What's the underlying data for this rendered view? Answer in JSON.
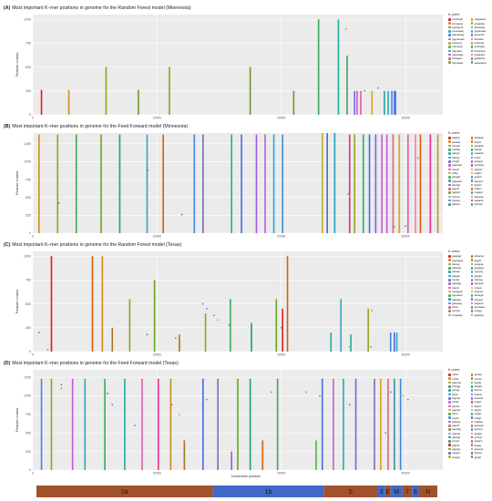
{
  "panels": [
    {
      "letter": "(A)",
      "title": "Most important K–mer positions in genome for the Random Forest model (Minnesota)",
      "ylabel": "Feature counts",
      "yticks": [
        0,
        250,
        500,
        750,
        1000
      ],
      "ylim": [
        0,
        1050
      ],
      "xticks": [
        "0",
        "10000",
        "20000",
        "30000"
      ],
      "legend_title": "K–mers",
      "legend": [
        "ccttcttgtc",
        "ctagaaaa",
        "ttccaacgt",
        "acaattac",
        "agcagcta",
        "ttttacaag",
        "ccacaaag",
        "gtgtacaac",
        "tgacaaatg",
        "agcacttc",
        "tggcacaac",
        "tttcaaat",
        "tcgtacgt",
        "tcattcaa",
        "ctacaagt",
        "gcttctgat",
        "tggcttaa",
        "tttcacaca",
        "cagtcaaa",
        "tctaaaca",
        "ttcaagat",
        "gaatttcta",
        "ctgcaaca",
        "aacaagca"
      ],
      "colors": [
        "#e41a1c",
        "#c8901a",
        "#e07a5f",
        "#9aa01a",
        "#6c9a2a",
        "#3aaa5a",
        "#1ab09a",
        "#2aa8c8",
        "#3a8ae0",
        "#7a6ae0",
        "#c25ae0",
        "#e05aa8",
        "#d9a020",
        "#a0b020",
        "#50b040",
        "#20b080",
        "#20a0c0",
        "#4070e0",
        "#8060e0",
        "#c060c0",
        "#e06080",
        "#b07030",
        "#70a050",
        "#3090b0"
      ],
      "chart_data": {
        "type": "bar",
        "x": [
          700,
          2900,
          5900,
          8500,
          11000,
          17500,
          21000,
          23000,
          24600,
          25300,
          25900,
          26100,
          26400,
          27300,
          28300,
          28600,
          28900,
          29100,
          29200
        ],
        "values": [
          260,
          260,
          500,
          260,
          500,
          500,
          250,
          1000,
          1000,
          620,
          250,
          250,
          250,
          250,
          250,
          250,
          250,
          250,
          250
        ],
        "series_index": [
          0,
          1,
          3,
          4,
          3,
          4,
          4,
          5,
          6,
          5,
          9,
          10,
          11,
          12,
          6,
          7,
          8,
          9,
          8
        ],
        "points": [
          [
            25200,
            900
          ],
          [
            26700,
            250
          ],
          [
            27800,
            280
          ]
        ]
      }
    },
    {
      "letter": "(B)",
      "title": "Most important K–mer positions in genome for the Feed Forward model (Minnesota)",
      "ylabel": "Feature counts",
      "yticks": [
        0,
        250,
        500,
        750,
        1000,
        1250
      ],
      "ylim": [
        0,
        1400
      ],
      "xticks": [
        "0",
        "10000",
        "20000",
        "30000"
      ],
      "legend_title": "K–mers",
      "legend": [
        "aagttg",
        "tatgaaa",
        "acaatg",
        "tttgca",
        "cacgat",
        "gtatgaa",
        "caatag",
        "cttcaa",
        "tgtcga",
        "caaatat",
        "ttaacg",
        "tccttc",
        "ccgtgt",
        "aacggt",
        "aaacaat",
        "tacaacg",
        "tcagtc",
        "gtgcac",
        "ttttttg",
        "cagttc",
        "gcgggt",
        "gcactt",
        "tgagcaa",
        "agcgcc",
        "aacagt",
        "ttgctct",
        "gtgcct",
        "ctattct",
        "tggtgct",
        "cagagt",
        "actcca",
        "aaacaa",
        "gctaca",
        "aaaaca",
        "tgttaat",
        "gtttcaa"
      ],
      "colors": [
        "#e41a1c",
        "#d95f02",
        "#c8901a",
        "#a6761d",
        "#9aa01a",
        "#66a61e",
        "#3aaa5a",
        "#1b9e77",
        "#1ab09a",
        "#2aa8c8",
        "#3a8ae0",
        "#4a6ae0",
        "#7570b3",
        "#9a5ae0",
        "#c25ae0",
        "#e7298a",
        "#e05aa8",
        "#f47ca0",
        "#d9a020",
        "#b8b020",
        "#50b040",
        "#20b080",
        "#20a0c0",
        "#4070e0",
        "#8060e0",
        "#c060c0",
        "#e06080",
        "#b07030",
        "#70a050",
        "#3090b0",
        "#a0a0a0",
        "#e08030",
        "#5080c0",
        "#c03030",
        "#30a070",
        "#9060b0"
      ],
      "chart_data": {
        "type": "bar",
        "x": [
          500,
          2000,
          3500,
          5500,
          7000,
          9200,
          10500,
          13000,
          13700,
          16000,
          16800,
          18000,
          18700,
          19400,
          20100,
          23300,
          23700,
          24300,
          25500,
          25900,
          26600,
          27100,
          27600,
          28100,
          28500,
          29000,
          29500,
          30200,
          30800,
          31200,
          32000,
          32600
        ],
        "values": [
          1380,
          1380,
          1380,
          1380,
          1380,
          1380,
          1380,
          1380,
          1380,
          1380,
          1380,
          1380,
          1380,
          1380,
          1380,
          1400,
          1400,
          1400,
          1380,
          1380,
          1380,
          1380,
          1380,
          1380,
          1380,
          1380,
          1380,
          1380,
          1380,
          1380,
          1380,
          1380
        ],
        "series_index": [
          2,
          4,
          6,
          5,
          7,
          9,
          1,
          10,
          12,
          8,
          11,
          13,
          14,
          9,
          10,
          19,
          23,
          22,
          15,
          4,
          21,
          23,
          24,
          25,
          14,
          26,
          18,
          16,
          17,
          1,
          15,
          2
        ],
        "points": [
          [
            2100,
            420
          ],
          [
            9200,
            1050
          ],
          [
            9250,
            880
          ],
          [
            12000,
            260
          ],
          [
            24300,
            920
          ],
          [
            25400,
            550
          ],
          [
            25500,
            520
          ],
          [
            30000,
            100
          ],
          [
            29100,
            90
          ],
          [
            31000,
            1050
          ]
        ]
      }
    },
    {
      "letter": "(C)",
      "title": "Most important K–mer positions in genome for the Random Forest model (Texas)",
      "ylabel": "Feature counts",
      "yticks": [
        0,
        250,
        500,
        750,
        1000
      ],
      "ylim": [
        0,
        1050
      ],
      "xticks": [
        "0",
        "10000",
        "20000",
        "30000"
      ],
      "legend_title": "K–mers",
      "legend": [
        "agagtgc",
        "atttacac",
        "aagctgac",
        "tggtcc",
        "ttacag",
        "acagga",
        "atttacat",
        "gtagagc",
        "atcaac",
        "cgcgcg",
        "gtagac",
        "gttgtta",
        "cactta",
        "ttatcag",
        "agtatgg",
        "tatcgaa",
        "ctacct",
        "cctgat",
        "cacaggtt",
        "acacca",
        "agcaaca",
        "tatcaga",
        "tgaactg",
        "tatcagt",
        "gatacag",
        "tatgaca",
        "tttcat",
        "accaaaa",
        "acctca",
        "tcatgg",
        "cctgatga",
        "ggatatg"
      ],
      "colors": [
        "#e41a1c",
        "#d95f02",
        "#c8901a",
        "#a6761d",
        "#9aa01a",
        "#66a61e",
        "#3aaa5a",
        "#1b9e77",
        "#1ab09a",
        "#2aa8c8",
        "#3a8ae0",
        "#4a6ae0",
        "#7570b3",
        "#9a5ae0",
        "#c25ae0",
        "#e7298a",
        "#e05aa8",
        "#f47ca0",
        "#d9a020",
        "#b8b020",
        "#50b040",
        "#20b080",
        "#20a0c0",
        "#4070e0",
        "#8060e0",
        "#c060c0",
        "#e06080",
        "#b07030",
        "#70a050",
        "#3090b0",
        "#a0a0a0",
        "#e08030"
      ],
      "chart_data": {
        "type": "bar",
        "x": [
          1500,
          4800,
          5600,
          6400,
          7800,
          9800,
          11800,
          13900,
          15900,
          17600,
          19600,
          20100,
          20500,
          24000,
          24800,
          25600,
          27000,
          28800,
          29100,
          29300
        ],
        "values": [
          1000,
          1000,
          1000,
          250,
          550,
          750,
          180,
          400,
          550,
          300,
          550,
          450,
          1000,
          200,
          550,
          180,
          450,
          200,
          200,
          200
        ],
        "series_index": [
          0,
          1,
          2,
          3,
          4,
          5,
          3,
          4,
          6,
          7,
          5,
          0,
          1,
          8,
          9,
          8,
          4,
          10,
          11,
          9
        ],
        "points": [
          [
            500,
            200
          ],
          [
            1200,
            20
          ],
          [
            9200,
            180
          ],
          [
            13700,
            500
          ],
          [
            14000,
            450
          ],
          [
            14600,
            380
          ],
          [
            14900,
            330
          ],
          [
            15800,
            280
          ],
          [
            11500,
            140
          ],
          [
            20000,
            250
          ],
          [
            27300,
            430
          ],
          [
            25500,
            50
          ],
          [
            27200,
            50
          ]
        ]
      }
    },
    {
      "letter": "(D)",
      "title": "Most important K–mer positions in genome for the Feed Forward model (Texas)",
      "ylabel": "Feature counts",
      "yticks": [
        0,
        250,
        500,
        750,
        1000,
        1250
      ],
      "ylim": [
        0,
        1350
      ],
      "xticks": [
        "0",
        "10000",
        "20000",
        "30000"
      ],
      "legend_title": "K–mers",
      "legend": [
        "catttc",
        "gtcagt",
        "ccttttt",
        "cctcat",
        "gagcaa",
        "tatgtg",
        "cttgtgg",
        "aatgta",
        "gctgtg",
        "ttacca",
        "tttcat",
        "ttactat",
        "tagcaa",
        "aaacac",
        "ccttac",
        "tcggtt",
        "tgtcaa",
        "ttgacc",
        "ggacat",
        "gtgtcc",
        "tcttcc",
        "cgtgtt",
        "gcgttt",
        "ctatgt",
        "aaacgt",
        "cagtaa",
        "gagctt",
        "gacaga",
        "aacaag",
        "tgcacg",
        "tgacaa",
        "gtgtga",
        "gacagt",
        "gcctgc",
        "tcccat",
        "tgaacc",
        "gtatca",
        "ttgtag",
        "aggtga",
        "gaacac",
        "caggtc",
        "tgtgcg",
        "tcaggc",
        "ggtgtt"
      ],
      "colors": [
        "#e41a1c",
        "#d95f02",
        "#c8901a",
        "#a6761d",
        "#9aa01a",
        "#66a61e",
        "#3aaa5a",
        "#1b9e77",
        "#1ab09a",
        "#2aa8c8",
        "#3a8ae0",
        "#4a6ae0",
        "#7570b3",
        "#9a5ae0",
        "#c25ae0",
        "#e7298a",
        "#e05aa8",
        "#f47ca0",
        "#d9a020",
        "#b8b020",
        "#50b040",
        "#20b080",
        "#20a0c0",
        "#4070e0",
        "#8060e0",
        "#c060c0",
        "#e06080",
        "#b07030",
        "#70a050",
        "#3090b0",
        "#a0a0a0",
        "#e08030",
        "#5080c0",
        "#c03030",
        "#30a070",
        "#9060b0",
        "#e41a1c",
        "#d95f02",
        "#66a61e",
        "#2aa8c8",
        "#7570b3",
        "#e7298a",
        "#b8b020",
        "#3090b0"
      ],
      "chart_data": {
        "type": "bar",
        "x": [
          700,
          1500,
          3200,
          4200,
          5800,
          7400,
          8800,
          10100,
          11100,
          12200,
          13700,
          14900,
          16000,
          16500,
          17500,
          18500,
          19700,
          22800,
          23300,
          24200,
          25000,
          26000,
          27500,
          28000,
          28600,
          29100,
          29600
        ],
        "values": [
          1230,
          1230,
          1230,
          1230,
          1230,
          1230,
          1230,
          1230,
          1230,
          400,
          1230,
          1230,
          250,
          1230,
          1230,
          400,
          1230,
          400,
          1230,
          1230,
          1230,
          1230,
          1230,
          1230,
          1230,
          1230,
          1230
        ],
        "series_index": [
          10,
          4,
          14,
          9,
          6,
          8,
          16,
          15,
          2,
          3,
          11,
          12,
          13,
          5,
          7,
          1,
          6,
          20,
          23,
          25,
          9,
          24,
          12,
          18,
          26,
          29,
          10
        ],
        "points": [
          [
            2300,
            1150
          ],
          [
            2300,
            1100
          ],
          [
            6000,
            1030
          ],
          [
            6400,
            880
          ],
          [
            8200,
            600
          ],
          [
            11200,
            880
          ],
          [
            11800,
            750
          ],
          [
            13700,
            1000
          ],
          [
            14000,
            950
          ],
          [
            19200,
            1050
          ],
          [
            22000,
            1050
          ],
          [
            23100,
            1000
          ],
          [
            25500,
            880
          ],
          [
            28400,
            500
          ],
          [
            28800,
            1050
          ],
          [
            29800,
            1000
          ],
          [
            30200,
            950
          ]
        ]
      }
    }
  ],
  "xlim": [
    0,
    33000
  ],
  "xlabel": "Nucleotide position",
  "genome": [
    {
      "label": "1a",
      "start": 0,
      "end": 13200,
      "color": "#a0522d"
    },
    {
      "label": "1b",
      "start": 13200,
      "end": 21500,
      "color": "#4169c8"
    },
    {
      "label": "S",
      "start": 21500,
      "end": 25500,
      "color": "#a0522d"
    },
    {
      "label": "3",
      "start": 25500,
      "end": 26100,
      "color": "#4169c8"
    },
    {
      "label": "E",
      "start": 26100,
      "end": 26500,
      "color": "#a0522d"
    },
    {
      "label": "M",
      "start": 26500,
      "end": 27400,
      "color": "#4169c8"
    },
    {
      "label": "7",
      "start": 27400,
      "end": 28100,
      "color": "#a0522d"
    },
    {
      "label": "8",
      "start": 28100,
      "end": 28600,
      "color": "#4169c8"
    },
    {
      "label": "N",
      "start": 28600,
      "end": 30000,
      "color": "#a0522d"
    }
  ]
}
